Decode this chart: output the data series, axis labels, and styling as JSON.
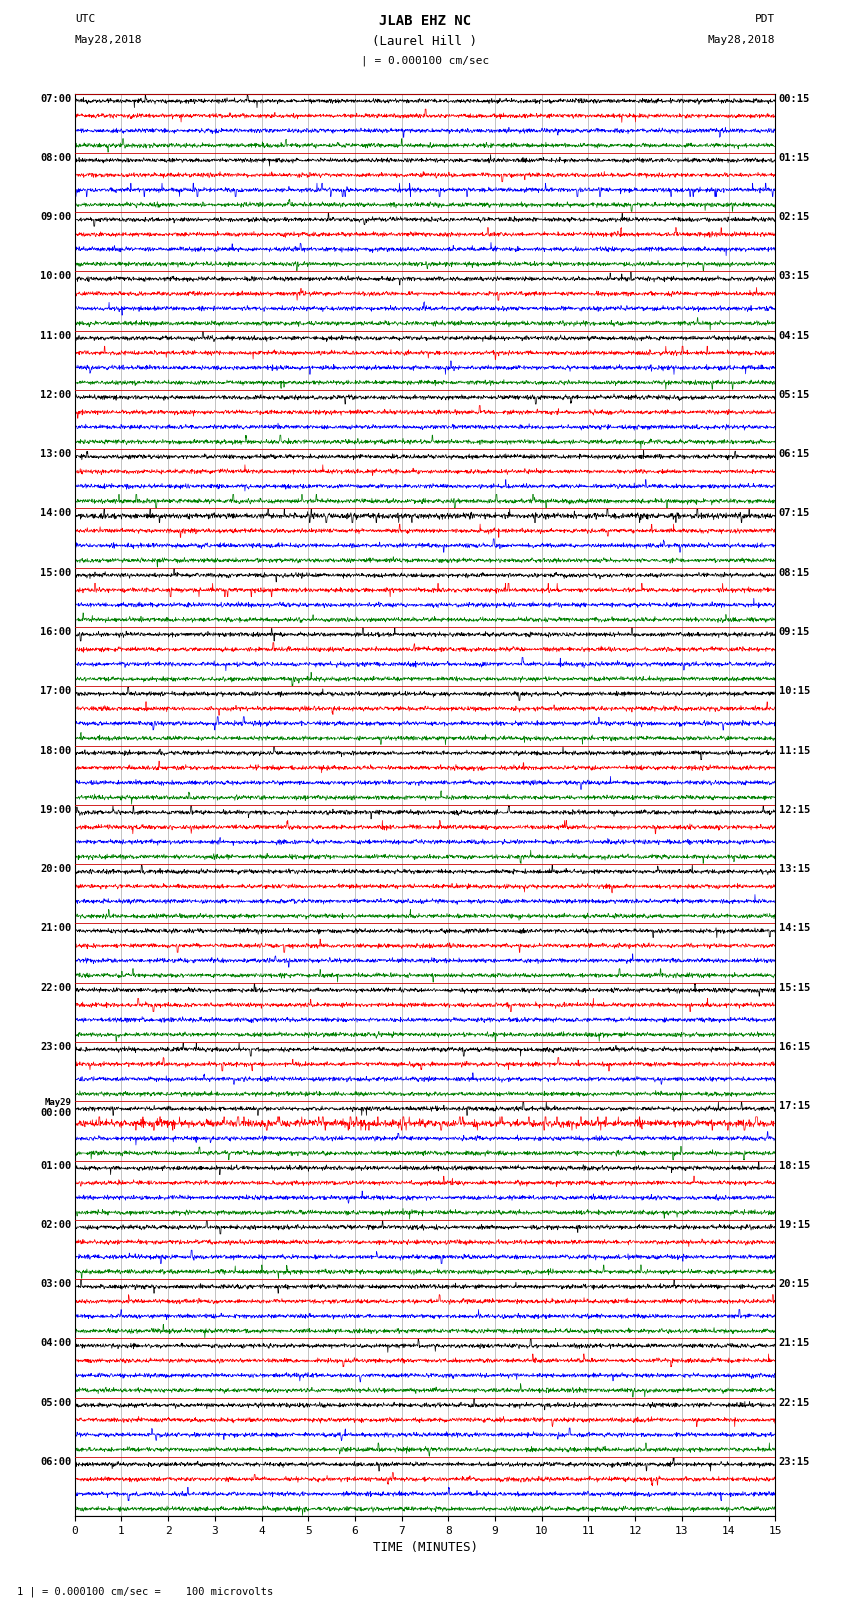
{
  "title_line1": "JLAB EHZ NC",
  "title_line2": "(Laurel Hill )",
  "scale_label": "| = 0.000100 cm/sec",
  "utc_label": "UTC",
  "utc_date": "May28,2018",
  "pdt_label": "PDT",
  "pdt_date": "May28,2018",
  "xlabel": "TIME (MINUTES)",
  "footnote": "1 | = 0.000100 cm/sec =    100 microvolts",
  "left_times": [
    "07:00",
    "08:00",
    "09:00",
    "10:00",
    "11:00",
    "12:00",
    "13:00",
    "14:00",
    "15:00",
    "16:00",
    "17:00",
    "18:00",
    "19:00",
    "20:00",
    "21:00",
    "22:00",
    "23:00",
    "May29\n00:00",
    "01:00",
    "02:00",
    "03:00",
    "04:00",
    "05:00",
    "06:00"
  ],
  "right_times": [
    "00:15",
    "01:15",
    "02:15",
    "03:15",
    "04:15",
    "05:15",
    "06:15",
    "07:15",
    "08:15",
    "09:15",
    "10:15",
    "11:15",
    "12:15",
    "13:15",
    "14:15",
    "15:15",
    "16:15",
    "17:15",
    "18:15",
    "19:15",
    "20:15",
    "21:15",
    "22:15",
    "23:15"
  ],
  "n_rows": 24,
  "traces_per_row": 4,
  "colors": [
    "black",
    "red",
    "blue",
    "green"
  ],
  "bg_color": "#ffffff",
  "grid_color": "#888888",
  "xmin": 0,
  "xmax": 15,
  "xticks": [
    0,
    1,
    2,
    3,
    4,
    5,
    6,
    7,
    8,
    9,
    10,
    11,
    12,
    13,
    14,
    15
  ]
}
